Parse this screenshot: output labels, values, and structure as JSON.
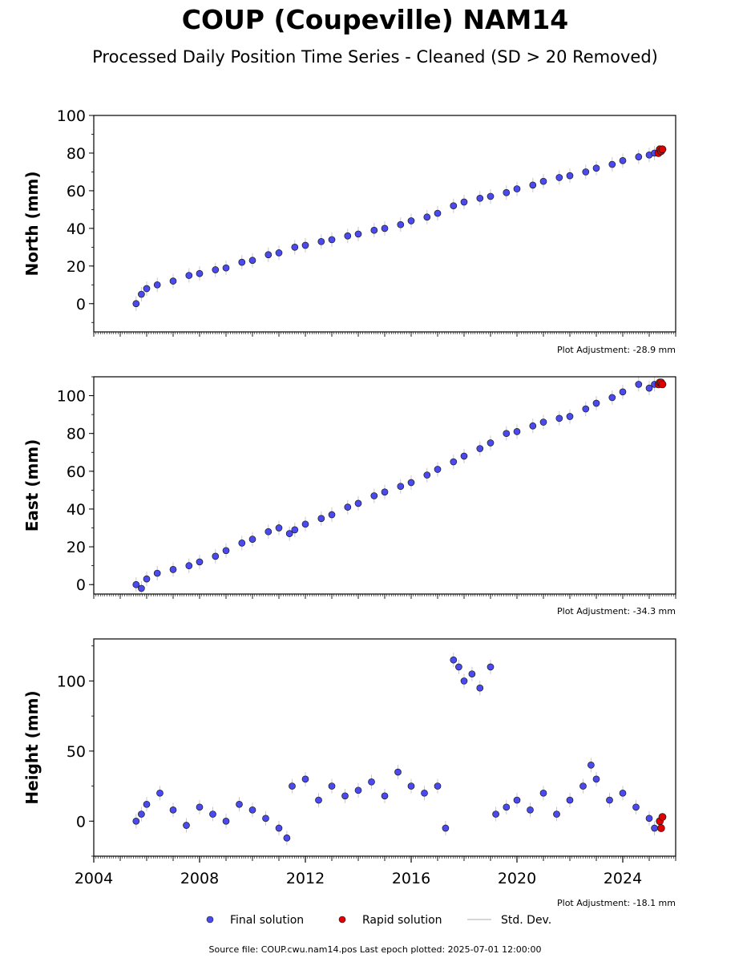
{
  "header": {
    "title": "COUP (Coupeville) NAM14",
    "subtitle": "Processed Daily Position Time Series - Cleaned (SD > 20 Removed)"
  },
  "legend": {
    "placement": "bottom-center",
    "items": [
      {
        "label": "Final solution",
        "color": "#4a4af0",
        "kind": "dot"
      },
      {
        "label": "Rapid solution",
        "color": "#e00000",
        "kind": "dot"
      },
      {
        "label": "Std. Dev.",
        "color": "#c8c8c8",
        "kind": "line"
      }
    ]
  },
  "footer": {
    "source": "Source file: COUP.cwu.nam14.pos  Last epoch plotted: 2025-07-01 12:00:00"
  },
  "chart_data": [
    {
      "type": "scatter",
      "ylabel": "North (mm)",
      "adjustment": "Plot Adjustment: -28.9 mm",
      "xlim": [
        2004.0,
        2026.0
      ],
      "ylim": [
        -15,
        100
      ],
      "yticks": [
        0,
        20,
        40,
        60,
        80,
        100
      ],
      "xticks": [],
      "series": [
        {
          "values": [
            [
              2005.6,
              0
            ],
            [
              2005.8,
              5
            ],
            [
              2006.0,
              8
            ],
            [
              2006.4,
              10
            ],
            [
              2007.0,
              12
            ],
            [
              2007.6,
              15
            ],
            [
              2008.0,
              16
            ],
            [
              2008.6,
              18
            ],
            [
              2009.0,
              19
            ],
            [
              2009.6,
              22
            ],
            [
              2010.0,
              23
            ],
            [
              2010.6,
              26
            ],
            [
              2011.0,
              27
            ],
            [
              2011.6,
              30
            ],
            [
              2012.0,
              31
            ],
            [
              2012.6,
              33
            ],
            [
              2013.0,
              34
            ],
            [
              2013.6,
              36
            ],
            [
              2014.0,
              37
            ],
            [
              2014.6,
              39
            ],
            [
              2015.0,
              40
            ],
            [
              2015.6,
              42
            ],
            [
              2016.0,
              44
            ],
            [
              2016.6,
              46
            ],
            [
              2017.0,
              48
            ],
            [
              2017.6,
              52
            ],
            [
              2018.0,
              54
            ],
            [
              2018.6,
              56
            ],
            [
              2019.0,
              57
            ],
            [
              2019.6,
              59
            ],
            [
              2020.0,
              61
            ],
            [
              2020.6,
              63
            ],
            [
              2021.0,
              65
            ],
            [
              2021.6,
              67
            ],
            [
              2022.0,
              68
            ],
            [
              2022.6,
              70
            ],
            [
              2023.0,
              72
            ],
            [
              2023.6,
              74
            ],
            [
              2024.0,
              76
            ],
            [
              2024.6,
              78
            ],
            [
              2025.0,
              79
            ],
            [
              2025.2,
              80
            ]
          ]
        },
        {
          "values": [
            [
              2025.35,
              80
            ],
            [
              2025.4,
              82
            ],
            [
              2025.45,
              81
            ],
            [
              2025.5,
              82
            ]
          ]
        }
      ]
    },
    {
      "type": "scatter",
      "ylabel": "East (mm)",
      "adjustment": "Plot Adjustment: -34.3 mm",
      "xlim": [
        2004.0,
        2026.0
      ],
      "ylim": [
        -5,
        110
      ],
      "yticks": [
        0,
        20,
        40,
        60,
        80,
        100
      ],
      "xticks": [],
      "series": [
        {
          "values": [
            [
              2005.6,
              0
            ],
            [
              2005.8,
              -2
            ],
            [
              2006.0,
              3
            ],
            [
              2006.4,
              6
            ],
            [
              2007.0,
              8
            ],
            [
              2007.6,
              10
            ],
            [
              2008.0,
              12
            ],
            [
              2008.6,
              15
            ],
            [
              2009.0,
              18
            ],
            [
              2009.6,
              22
            ],
            [
              2010.0,
              24
            ],
            [
              2010.6,
              28
            ],
            [
              2011.0,
              30
            ],
            [
              2011.4,
              27
            ],
            [
              2011.6,
              29
            ],
            [
              2012.0,
              32
            ],
            [
              2012.6,
              35
            ],
            [
              2013.0,
              37
            ],
            [
              2013.6,
              41
            ],
            [
              2014.0,
              43
            ],
            [
              2014.6,
              47
            ],
            [
              2015.0,
              49
            ],
            [
              2015.6,
              52
            ],
            [
              2016.0,
              54
            ],
            [
              2016.6,
              58
            ],
            [
              2017.0,
              61
            ],
            [
              2017.6,
              65
            ],
            [
              2018.0,
              68
            ],
            [
              2018.6,
              72
            ],
            [
              2019.0,
              75
            ],
            [
              2019.6,
              80
            ],
            [
              2020.0,
              81
            ],
            [
              2020.6,
              84
            ],
            [
              2021.0,
              86
            ],
            [
              2021.6,
              88
            ],
            [
              2022.0,
              89
            ],
            [
              2022.6,
              93
            ],
            [
              2023.0,
              96
            ],
            [
              2023.6,
              99
            ],
            [
              2024.0,
              102
            ],
            [
              2024.6,
              106
            ],
            [
              2025.0,
              104
            ],
            [
              2025.2,
              106
            ]
          ]
        },
        {
          "values": [
            [
              2025.35,
              106
            ],
            [
              2025.4,
              107
            ],
            [
              2025.45,
              107
            ],
            [
              2025.5,
              106
            ]
          ]
        }
      ]
    },
    {
      "type": "scatter",
      "ylabel": "Height (mm)",
      "adjustment": "Plot Adjustment: -18.1 mm",
      "xlim": [
        2004.0,
        2026.0
      ],
      "ylim": [
        -25,
        130
      ],
      "yticks": [
        0,
        50,
        100
      ],
      "xticks": [
        "2004",
        "2008",
        "2012",
        "2016",
        "2020",
        "2024"
      ],
      "series": [
        {
          "values": [
            [
              2005.6,
              0
            ],
            [
              2005.8,
              5
            ],
            [
              2006.0,
              12
            ],
            [
              2006.5,
              20
            ],
            [
              2007.0,
              8
            ],
            [
              2007.5,
              -3
            ],
            [
              2008.0,
              10
            ],
            [
              2008.5,
              5
            ],
            [
              2009.0,
              0
            ],
            [
              2009.5,
              12
            ],
            [
              2010.0,
              8
            ],
            [
              2010.5,
              2
            ],
            [
              2011.0,
              -5
            ],
            [
              2011.3,
              -12
            ],
            [
              2011.5,
              25
            ],
            [
              2012.0,
              30
            ],
            [
              2012.5,
              15
            ],
            [
              2013.0,
              25
            ],
            [
              2013.5,
              18
            ],
            [
              2014.0,
              22
            ],
            [
              2014.5,
              28
            ],
            [
              2015.0,
              18
            ],
            [
              2015.5,
              35
            ],
            [
              2016.0,
              25
            ],
            [
              2016.5,
              20
            ],
            [
              2017.0,
              25
            ],
            [
              2017.3,
              -5
            ],
            [
              2017.6,
              115
            ],
            [
              2017.8,
              110
            ],
            [
              2018.0,
              100
            ],
            [
              2018.3,
              105
            ],
            [
              2018.6,
              95
            ],
            [
              2019.0,
              110
            ],
            [
              2019.2,
              5
            ],
            [
              2019.6,
              10
            ],
            [
              2020.0,
              15
            ],
            [
              2020.5,
              8
            ],
            [
              2021.0,
              20
            ],
            [
              2021.5,
              5
            ],
            [
              2022.0,
              15
            ],
            [
              2022.5,
              25
            ],
            [
              2022.8,
              40
            ],
            [
              2023.0,
              30
            ],
            [
              2023.5,
              15
            ],
            [
              2024.0,
              20
            ],
            [
              2024.5,
              10
            ],
            [
              2025.0,
              2
            ],
            [
              2025.2,
              -5
            ]
          ]
        },
        {
          "values": [
            [
              2025.4,
              0
            ],
            [
              2025.45,
              -5
            ],
            [
              2025.5,
              3
            ]
          ]
        }
      ]
    }
  ]
}
